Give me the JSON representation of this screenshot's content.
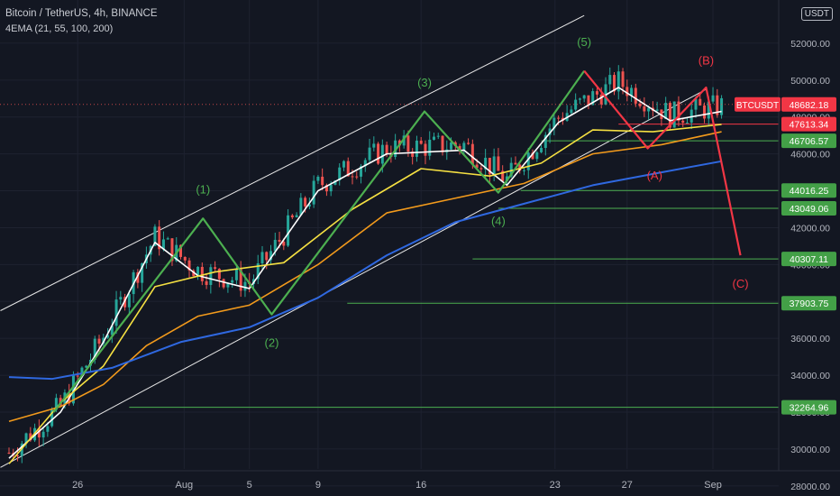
{
  "header": {
    "title": "Bitcoin / TetherUS, 4h, BINANCE",
    "indicator": "4EMA (21, 55, 100, 200)",
    "currency": "USDT"
  },
  "colors": {
    "background": "#131722",
    "candle_up": "#26a69a",
    "candle_down": "#ef5350",
    "ema21": "#ffffff",
    "ema55": "#f5e042",
    "ema100": "#f29a1c",
    "ema200": "#2f68e0",
    "impulse": "#4caf50",
    "correction": "#f23645",
    "level_line": "#4caf50",
    "channel": "#e8e8e8"
  },
  "chart_data": {
    "type": "line",
    "symbol": "BTCUSDT",
    "interval": "4h",
    "x_axis": {
      "ticks": [
        "26",
        "Aug",
        "5",
        "9",
        "16",
        "23",
        "27",
        "Sep"
      ]
    },
    "y_axis": {
      "ylim": [
        27600,
        54000
      ],
      "ticks": [
        28000,
        30000,
        32000,
        34000,
        36000,
        38000,
        40000,
        42000,
        44000,
        46000,
        48000,
        50000,
        52000
      ]
    },
    "last_price": {
      "label": "BTCUSDT",
      "value": "48682.18"
    },
    "price_levels": [
      "47613.34",
      "46706.57",
      "44016.25",
      "43049.06",
      "40307.11",
      "37903.75",
      "32264.96"
    ],
    "series": [
      {
        "name": "EMA 21",
        "points": [
          [
            0,
            29500
          ],
          [
            3,
            32000
          ],
          [
            5.5,
            35800
          ],
          [
            8.5,
            41200
          ],
          [
            11,
            39400
          ],
          [
            14,
            38700
          ],
          [
            18,
            44000
          ],
          [
            22,
            46000
          ],
          [
            26.5,
            46200
          ],
          [
            29,
            44300
          ],
          [
            32,
            47700
          ],
          [
            35.5,
            49600
          ],
          [
            38.5,
            47800
          ],
          [
            41.5,
            48300
          ]
        ]
      },
      {
        "name": "EMA 55",
        "points": [
          [
            0,
            29200
          ],
          [
            3,
            32500
          ],
          [
            5.5,
            34500
          ],
          [
            8.5,
            38800
          ],
          [
            12,
            39600
          ],
          [
            16,
            40100
          ],
          [
            20,
            43000
          ],
          [
            24,
            45200
          ],
          [
            28,
            44800
          ],
          [
            31,
            45500
          ],
          [
            34,
            47300
          ],
          [
            37.5,
            47200
          ],
          [
            41.5,
            47600
          ]
        ]
      },
      {
        "name": "EMA 100",
        "points": [
          [
            0,
            31500
          ],
          [
            3,
            32300
          ],
          [
            5.5,
            33500
          ],
          [
            8,
            35600
          ],
          [
            11,
            37200
          ],
          [
            14,
            37800
          ],
          [
            18,
            40000
          ],
          [
            22,
            42800
          ],
          [
            26,
            43600
          ],
          [
            30,
            44400
          ],
          [
            34,
            46000
          ],
          [
            38,
            46500
          ],
          [
            41.5,
            47200
          ]
        ]
      },
      {
        "name": "EMA 200",
        "points": [
          [
            0,
            33900
          ],
          [
            2.5,
            33800
          ],
          [
            6,
            34400
          ],
          [
            10,
            35800
          ],
          [
            14,
            36600
          ],
          [
            18,
            38200
          ],
          [
            22,
            40500
          ],
          [
            26,
            42300
          ],
          [
            30,
            43300
          ],
          [
            34,
            44300
          ],
          [
            38,
            45000
          ],
          [
            41.5,
            45600
          ]
        ]
      }
    ],
    "annotations": {
      "impulse_labels": [
        "(1)",
        "(2)",
        "(3)",
        "(4)",
        "(5)"
      ],
      "impulse_wave": [
        [
          2.6,
          32000
        ],
        [
          11.3,
          42500
        ],
        [
          15.3,
          37300
        ],
        [
          24.2,
          48300
        ],
        [
          28.5,
          43900
        ],
        [
          33.5,
          50500
        ]
      ],
      "correction_labels": [
        "(A)",
        "(B)",
        "(C)"
      ],
      "correction_wave": [
        [
          33.5,
          50500
        ],
        [
          37.2,
          46300
        ],
        [
          40.6,
          49600
        ],
        [
          42.6,
          40500
        ]
      ]
    }
  }
}
